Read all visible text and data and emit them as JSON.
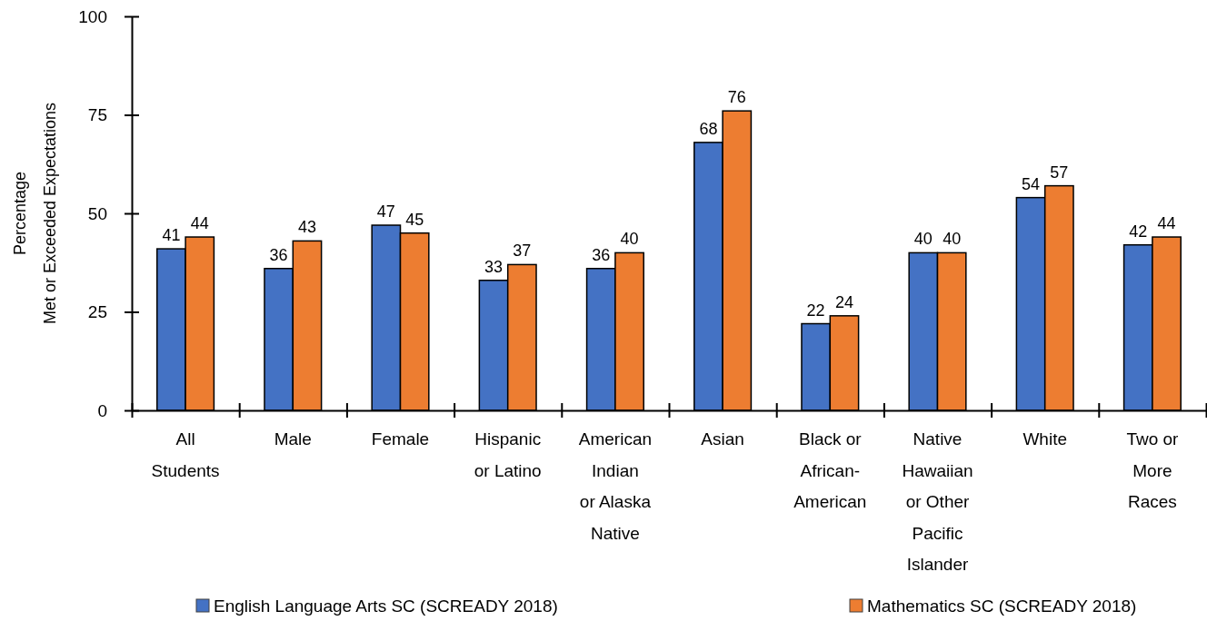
{
  "chart_data": {
    "type": "bar",
    "ylabel": "Percentage\nMet or Exceeded Expectations",
    "categories": [
      "All\nStudents",
      "Male",
      "Female",
      "Hispanic\nor Latino",
      "American\nIndian\nor Alaska\nNative",
      "Asian",
      "Black or\nAfrican-\nAmerican",
      "Native\nHawaiian\nor Other\nPacific\nIslander",
      "White",
      "Two or\nMore\nRaces"
    ],
    "series": [
      {
        "name": "English Language Arts SC (SCREADY 2018)",
        "color": "#4472c4",
        "values": [
          41,
          36,
          47,
          33,
          36,
          68,
          22,
          40,
          54,
          42
        ]
      },
      {
        "name": "Mathematics SC (SCREADY 2018)",
        "color": "#ed7d31",
        "values": [
          44,
          43,
          45,
          37,
          40,
          76,
          24,
          40,
          57,
          44
        ]
      }
    ],
    "ylim": [
      0,
      100
    ],
    "yticks": [
      0,
      25,
      50,
      75,
      100
    ],
    "grid": false,
    "legend": "bottom",
    "data_labels": true
  }
}
